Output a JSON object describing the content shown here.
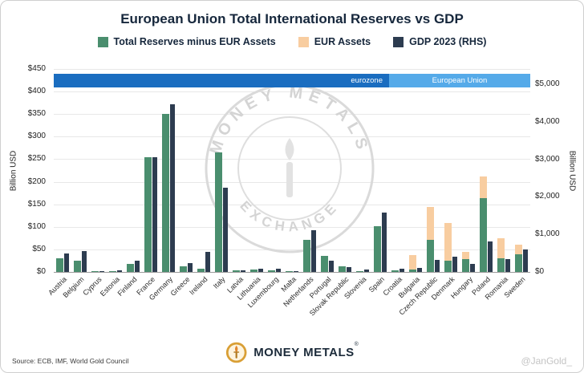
{
  "title": "European Union Total International Reserves vs GDP",
  "legend": [
    {
      "label": "Total Reserves minus EUR Assets",
      "color": "#4a8e6e"
    },
    {
      "label": "EUR Assets",
      "color": "#f8cda0"
    },
    {
      "label": "GDP 2023 (RHS)",
      "color": "#2d3c50"
    }
  ],
  "banner": {
    "eurozone_label": "eurozone",
    "eu_label": "European Union",
    "eurozone_color": "#1a6dc0",
    "eu_color": "#55aae9"
  },
  "axes": {
    "left_title": "Billion USD",
    "right_title": "Billion USD",
    "left_ticks": [
      {
        "label": "$450",
        "value": 450
      },
      {
        "label": "$400",
        "value": 400
      },
      {
        "label": "$350",
        "value": 350
      },
      {
        "label": "$300",
        "value": 300
      },
      {
        "label": "$250",
        "value": 250
      },
      {
        "label": "$200",
        "value": 200
      },
      {
        "label": "$150",
        "value": 150
      },
      {
        "label": "$100",
        "value": 100
      },
      {
        "label": "$50",
        "value": 50
      },
      {
        "label": "$0",
        "value": 0
      }
    ],
    "right_ticks": [
      {
        "label": "$5,000",
        "value": 5000
      },
      {
        "label": "$4,000",
        "value": 4000
      },
      {
        "label": "$3,000",
        "value": 3000
      },
      {
        "label": "$2,000",
        "value": 2000
      },
      {
        "label": "$1,000",
        "value": 1000
      },
      {
        "label": "$0",
        "value": 0
      }
    ]
  },
  "chart_data": {
    "type": "bar",
    "title": "European Union Total International Reserves vs GDP",
    "categories": [
      "Austria",
      "Belgium",
      "Cyprus",
      "Estonia",
      "Finland",
      "France",
      "Germany",
      "Greece",
      "Ireland",
      "Italy",
      "Latvia",
      "Lithuania",
      "Luxembourg",
      "Malta",
      "Netherlands",
      "Portugal",
      "Slovak Republic",
      "Slovenia",
      "Spain",
      "Croatia",
      "Bulgaria",
      "Czech Republic",
      "Denmark",
      "Hungary",
      "Poland",
      "Romania",
      "Sweden"
    ],
    "series": [
      {
        "name": "Total Reserves minus EUR Assets",
        "axis": "left",
        "values": [
          30,
          25,
          1,
          2,
          17,
          255,
          350,
          13,
          8,
          265,
          3,
          5,
          3,
          1,
          72,
          35,
          12,
          2,
          102,
          3,
          5,
          72,
          25,
          28,
          163,
          30,
          40
        ]
      },
      {
        "name": "EUR Assets",
        "axis": "left",
        "values": [
          0,
          0,
          0,
          0,
          0,
          0,
          0,
          0,
          0,
          0,
          0,
          0,
          0,
          0,
          0,
          0,
          0,
          0,
          0,
          0,
          33,
          73,
          84,
          17,
          48,
          45,
          20
        ]
      },
      {
        "name": "GDP 2023 (RHS)",
        "axis": "right",
        "values": [
          500,
          560,
          30,
          40,
          300,
          3050,
          4460,
          240,
          545,
          2250,
          45,
          80,
          85,
          20,
          1120,
          290,
          130,
          70,
          1580,
          85,
          100,
          330,
          405,
          210,
          810,
          350,
          590
        ]
      }
    ],
    "left_ylim": [
      0,
      450
    ],
    "right_ylim": [
      0,
      5000
    ],
    "left_ylabel": "Billion USD",
    "right_ylabel": "Billion USD",
    "grid": true,
    "legend_position": "top",
    "eurozone_end_index": 19
  },
  "watermark": {
    "top": "MONEY METALS",
    "bottom": "EXCHANGE"
  },
  "footer": {
    "source": "Source: ECB, IMF, World Gold Council",
    "brand": "MONEY METALS",
    "reg": "®",
    "handle": "@JanGold_"
  }
}
